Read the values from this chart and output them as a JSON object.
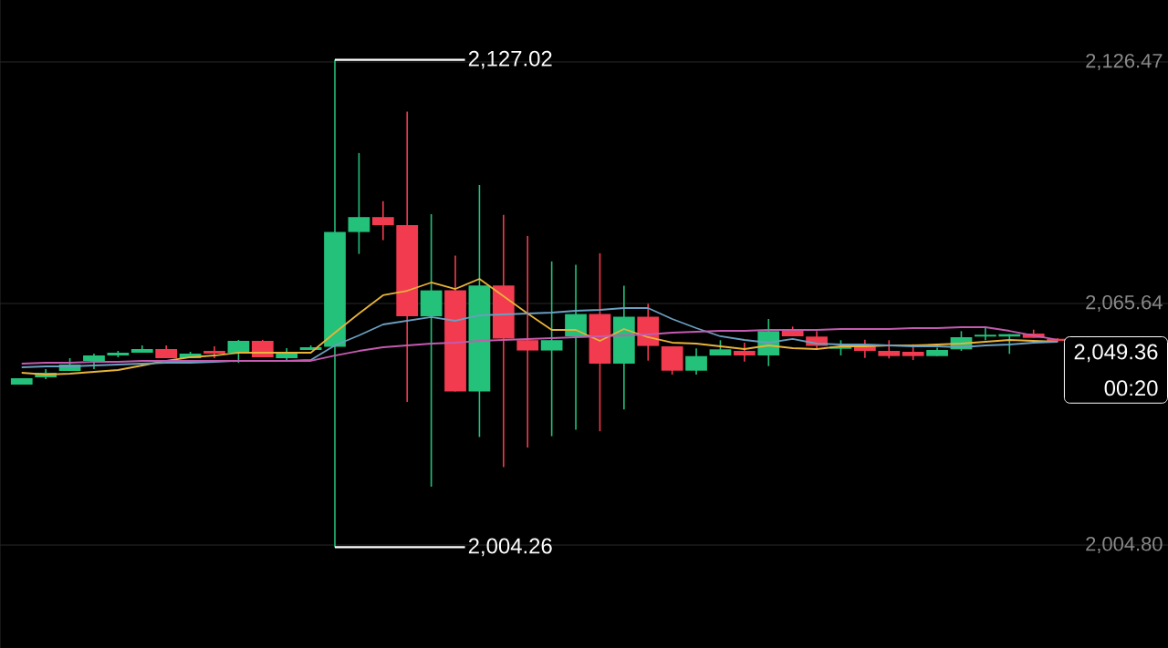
{
  "chart_data": {
    "type": "candlestick",
    "categories": [
      null,
      null,
      null,
      null,
      null,
      null,
      null,
      null,
      null,
      null,
      null,
      null,
      null,
      null,
      null,
      null,
      null,
      null,
      null,
      null,
      null,
      null,
      null,
      null,
      null,
      null,
      null,
      null,
      null,
      null,
      null,
      null,
      null,
      null,
      null,
      null,
      null,
      null,
      null,
      null,
      null,
      null,
      null,
      null
    ],
    "ohlc": [
      [
        2045.21,
        2046.82,
        2045.21,
        2046.82
      ],
      [
        2047.05,
        2049.11,
        2046.59,
        2048.19
      ],
      [
        2048.65,
        2051.86,
        2048.65,
        2050.26
      ],
      [
        2051.18,
        2053.01,
        2049.11,
        2052.55
      ],
      [
        2052.55,
        2053.7,
        2052.1,
        2053.24
      ],
      [
        2053.24,
        2055.08,
        2053.24,
        2054.16
      ],
      [
        2054.16,
        2055.08,
        2051.87,
        2051.87
      ],
      [
        2051.87,
        2053.47,
        2051.87,
        2053.01
      ],
      [
        2053.7,
        2054.85,
        2051.87,
        2053.01
      ],
      [
        2053.24,
        2056.46,
        2050.72,
        2056.23
      ],
      [
        2056.23,
        2056.46,
        2052.1,
        2052.1
      ],
      [
        2051.87,
        2054.39,
        2051.41,
        2053.01
      ],
      [
        2053.93,
        2055.08,
        2053.93,
        2054.62
      ],
      [
        2054.76,
        2127.02,
        2004.26,
        2083.64
      ],
      [
        2083.64,
        2103.54,
        2078.13,
        2087.4
      ],
      [
        2087.4,
        2091.42,
        2081.57,
        2085.36
      ],
      [
        2085.36,
        2113.96,
        2040.83,
        2062.4
      ],
      [
        2062.4,
        2088.13,
        2019.5,
        2068.94
      ],
      [
        2068.94,
        2077.71,
        2043.46,
        2043.46
      ],
      [
        2043.46,
        2095.5,
        2031.99,
        2070.18
      ],
      [
        2070.18,
        2087.97,
        2024.43,
        2056.83
      ],
      [
        2056.41,
        2082.65,
        2029.35,
        2053.8
      ],
      [
        2053.8,
        2076.24,
        2032.22,
        2056.41
      ],
      [
        2057.38,
        2075.42,
        2033.87,
        2062.98
      ],
      [
        2062.98,
        2078.29,
        2033.46,
        2050.49
      ],
      [
        2050.49,
        2070.09,
        2038.94,
        2062.31
      ],
      [
        2062.31,
        2065.59,
        2051.25,
        2054.94
      ],
      [
        2054.85,
        2054.85,
        2047.73,
        2048.72
      ],
      [
        2048.72,
        2054.32,
        2047.73,
        2052.39
      ],
      [
        2052.55,
        2056.39,
        2052.55,
        2054.09
      ],
      [
        2053.7,
        2055.77,
        2051.02,
        2052.55
      ],
      [
        2052.55,
        2061.74,
        2049.87,
        2058.68
      ],
      [
        2058.91,
        2059.83,
        2057.38,
        2057.38
      ],
      [
        2057.31,
        2058.68,
        2054.09,
        2054.96
      ],
      [
        2054.23,
        2056.39,
        2052.55,
        2054.85
      ],
      [
        2054.96,
        2056.53,
        2051.93,
        2053.7
      ],
      [
        2053.7,
        2056.39,
        2051.8,
        2052.39
      ],
      [
        2053.47,
        2055.38,
        2051.41,
        2052.39
      ],
      [
        2052.39,
        2054.5,
        2052.39,
        2053.93
      ],
      [
        2054.09,
        2058.68,
        2053.7,
        2057.15
      ],
      [
        2057.31,
        2059.6,
        2056.39,
        2057.77
      ],
      [
        2057.31,
        2057.92,
        2052.95,
        2057.92
      ],
      [
        2058.06,
        2059.05,
        2056.98,
        2056.98
      ],
      [
        2056.75,
        2056.9,
        2055.9,
        2056.23
      ]
    ],
    "colors": [
      "#23c17a",
      "#23c17a",
      "#23c17a",
      "#23c17a",
      "#23c17a",
      "#23c17a",
      "#f23b4f",
      "#23c17a",
      "#f23b4f",
      "#23c17a",
      "#f23b4f",
      "#23c17a",
      "#23c17a",
      "#23c17a",
      "#23c17a",
      "#f23b4f",
      "#f23b4f",
      "#23c17a",
      "#f23b4f",
      "#23c17a",
      "#f23b4f",
      "#f23b4f",
      "#23c17a",
      "#23c17a",
      "#f23b4f",
      "#23c17a",
      "#f23b4f",
      "#f23b4f",
      "#23c17a",
      "#23c17a",
      "#f23b4f",
      "#23c17a",
      "#f23b4f",
      "#f23b4f",
      "#23c17a",
      "#f23b4f",
      "#f23b4f",
      "#f23b4f",
      "#23c17a",
      "#23c17a",
      "#23c17a",
      "#23c17a",
      "#f23b4f",
      "#f23b4f"
    ],
    "series": [
      {
        "type": "line",
        "color": "#e8b339",
        "values": [
          2048.19,
          2047.73,
          2047.96,
          2048.42,
          2048.88,
          2050.03,
          2051.18,
          2052.1,
          2052.55,
          2053.24,
          2053.24,
          2053.24,
          2053.24,
          2058.29,
          2063.11,
          2067.71,
          2068.85,
          2070.92,
          2069.31,
          2071.84,
          2067.48,
          2063.11,
          2058.98,
          2058.98,
          2056.23,
          2059.21,
          2057.15,
          2055.77,
          2055.54,
          2054.85,
          2054.16,
          2055.08,
          2054.39,
          2054.16,
          2054.85,
          2054.85,
          2055.08,
          2055.08,
          2055.31,
          2055.54,
          2056.0,
          2056.46,
          2056.23,
          2056.0
        ]
      },
      {
        "type": "line",
        "color": "#6a9fc0",
        "values": [
          2049.57,
          2049.8,
          2049.8,
          2050.03,
          2050.26,
          2050.49,
          2050.72,
          2050.72,
          2050.95,
          2051.18,
          2051.18,
          2051.18,
          2051.41,
          2055.08,
          2057.6,
          2060.36,
          2061.28,
          2062.2,
          2061.28,
          2062.66,
          2062.89,
          2063.11,
          2063.34,
          2063.8,
          2064.03,
          2064.49,
          2064.49,
          2061.74,
          2059.44,
          2057.38,
          2056.46,
          2055.77,
          2056.69,
          2055.54,
          2055.31,
          2055.31,
          2055.08,
          2054.85,
          2054.85,
          2054.62,
          2055.08,
          2055.31,
          2055.77,
          2056.0
        ]
      },
      {
        "type": "line",
        "color": "#c45bb0",
        "values": [
          2050.49,
          2050.72,
          2050.72,
          2050.95,
          2050.95,
          2051.18,
          2051.18,
          2051.18,
          2051.18,
          2051.18,
          2051.18,
          2051.18,
          2051.18,
          2052.55,
          2053.7,
          2054.62,
          2055.08,
          2055.54,
          2055.77,
          2056.23,
          2056.46,
          2056.69,
          2056.92,
          2057.15,
          2057.38,
          2057.6,
          2057.83,
          2058.29,
          2058.52,
          2058.75,
          2058.75,
          2058.98,
          2058.98,
          2058.98,
          2059.21,
          2059.21,
          2059.21,
          2059.44,
          2059.44,
          2059.67,
          2059.67,
          2058.75,
          2057.6,
          2056.46
        ]
      }
    ],
    "ylim": [
      1978.87,
      2142.08
    ],
    "yticks": [
      {
        "value": 2004.8,
        "label": "2,004.80"
      },
      {
        "value": 2065.64,
        "label": "2,065.64"
      },
      {
        "value": 2126.47,
        "label": "2,126.47"
      }
    ],
    "grid": "y",
    "marker": "none",
    "annotations": [
      "2,127.02",
      "2,004.26",
      "2,049.36",
      "00:20"
    ]
  }
}
